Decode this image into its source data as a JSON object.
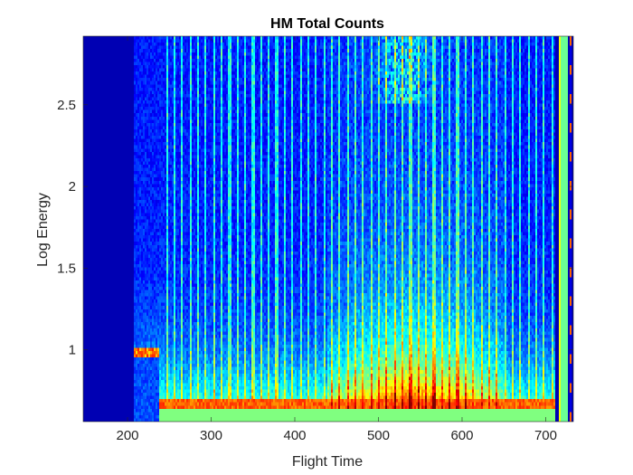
{
  "chart_data": {
    "type": "heatmap",
    "title": "HM Total Counts",
    "xlabel": "Flight Time",
    "ylabel": "Log Energy",
    "xlim": [
      147,
      733
    ],
    "ylim": [
      0.56,
      2.92
    ],
    "xticks": [
      200,
      300,
      400,
      500,
      600,
      700
    ],
    "yticks": [
      1,
      1.5,
      2,
      2.5
    ],
    "xtick_labels": [
      "200",
      "300",
      "400",
      "500",
      "600",
      "700"
    ],
    "ytick_labels": [
      "1",
      "1.5",
      "2",
      "2.5"
    ],
    "colormap": "jet",
    "background_color": "#00008f",
    "grid": false,
    "legend": "none",
    "features": {
      "data_start_time": 208,
      "data_end_time": 712,
      "sweep_start_time": 237,
      "sweep_period": 9.4,
      "energy_floor": 0.6,
      "high_energy_burst": {
        "time": 530,
        "energy_range": [
          2.5,
          2.92
        ]
      },
      "mid_energy_enhancement": {
        "time_range": [
          440,
          650
        ],
        "energy_range": [
          0.6,
          1.6
        ]
      },
      "bright_band_time": [
        715,
        727
      ],
      "edge_strip_times": [
        717,
        729
      ]
    }
  }
}
